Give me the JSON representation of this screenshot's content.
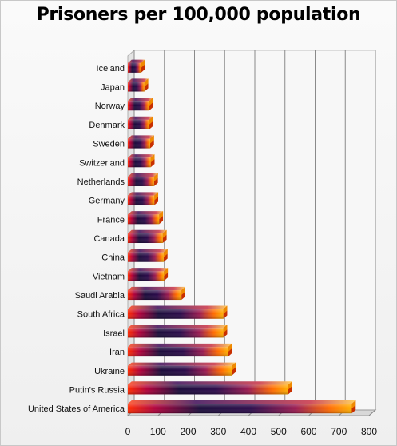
{
  "chart_data": {
    "type": "bar",
    "orientation": "horizontal",
    "title": "Prisoners per 100,000 population",
    "categories": [
      "Iceland",
      "Japan",
      "Norway",
      "Denmark",
      "Sweden",
      "Switzerland",
      "Netherlands",
      "Germany",
      "France",
      "Canada",
      "China",
      "Vietnam",
      "Saudi Arabia",
      "South Africa",
      "Israel",
      "Iran",
      "Ukraine",
      "Putin's Russia",
      "United States of America"
    ],
    "values": [
      44,
      55,
      71,
      71,
      74,
      76,
      87,
      88,
      104,
      116,
      119,
      120,
      178,
      317,
      317,
      333,
      345,
      532,
      743
    ],
    "xlim": [
      0,
      800
    ],
    "xticks": [
      "0",
      "100",
      "200",
      "300",
      "400",
      "500",
      "600",
      "700",
      "800"
    ],
    "grid": true,
    "legend": "none"
  }
}
